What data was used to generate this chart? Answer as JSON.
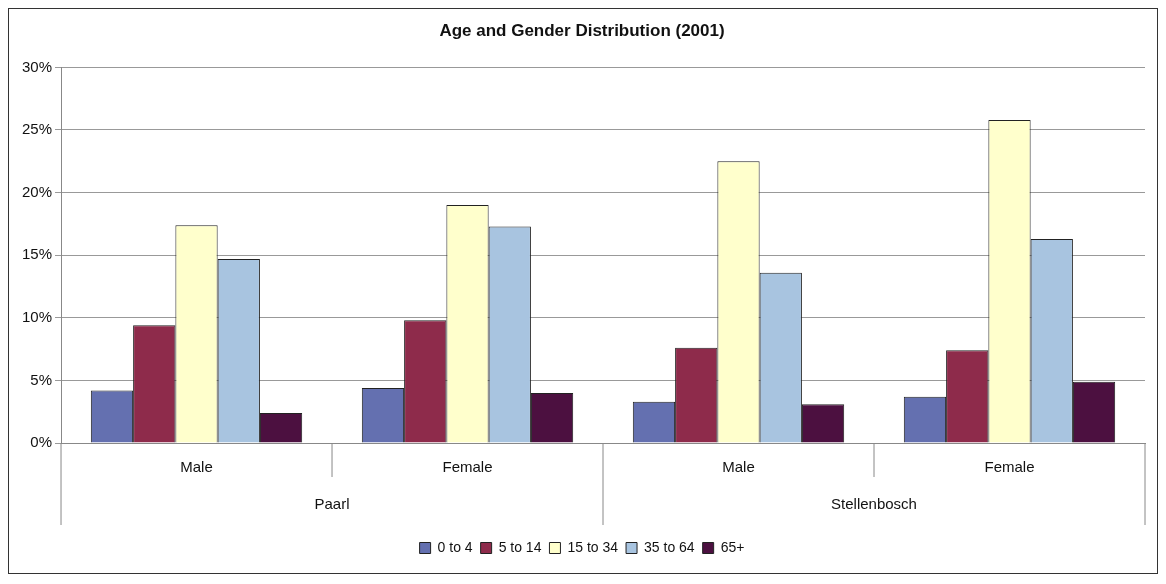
{
  "chart_data": {
    "type": "bar",
    "title": "Age and Gender Distribution (2001)",
    "categories": [
      "Male",
      "Female",
      "Male",
      "Female"
    ],
    "annotations": [
      "Paarl",
      "Stellenbosch"
    ],
    "series": [
      {
        "name": "0 to 4",
        "color": "#6470b0",
        "values": [
          4.2,
          4.4,
          3.3,
          3.7
        ]
      },
      {
        "name": "5 to 14",
        "color": "#8e2b4b",
        "values": [
          9.4,
          9.8,
          7.6,
          7.4
        ]
      },
      {
        "name": "15 to 34",
        "color": "#ffffcc",
        "values": [
          17.4,
          19.0,
          22.5,
          25.8
        ]
      },
      {
        "name": "35 to 64",
        "color": "#a8c4e0",
        "values": [
          14.7,
          17.3,
          13.6,
          16.3
        ]
      },
      {
        "name": "65+",
        "color": "#4c1040",
        "values": [
          2.4,
          4.0,
          3.1,
          4.9
        ]
      }
    ],
    "ylim": [
      0,
      30
    ],
    "yticks": [
      {
        "value": 0,
        "label": "0%"
      },
      {
        "value": 5,
        "label": "5%"
      },
      {
        "value": 10,
        "label": "10%"
      },
      {
        "value": 15,
        "label": "15%"
      },
      {
        "value": 20,
        "label": "20%"
      },
      {
        "value": 25,
        "label": "25%"
      },
      {
        "value": 30,
        "label": "30%"
      }
    ],
    "grid": "y",
    "legend": "bottom"
  }
}
